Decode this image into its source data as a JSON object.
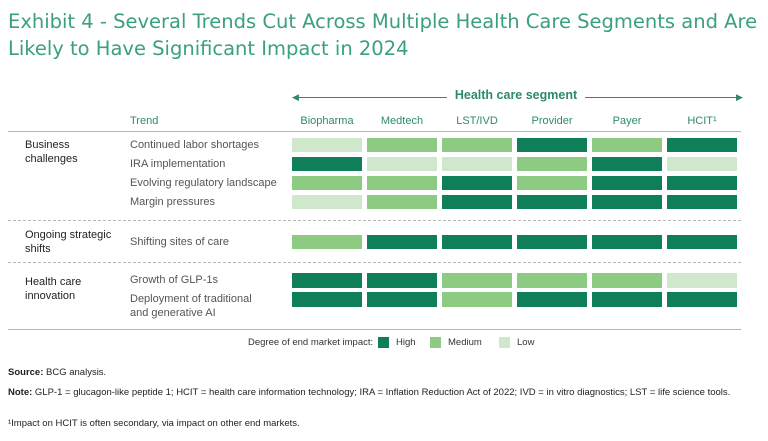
{
  "title": "Exhibit 4 - Several Trends Cut Across Multiple Health Care Segments and Are Likely to Have Significant Impact in 2024",
  "colors": {
    "high": "#0e7f58",
    "medium": "#8ccb81",
    "low": "#cfe8cc",
    "title": "#3aa07e",
    "accent": "#2e8b67"
  },
  "chart_data": {
    "type": "table",
    "title": "Exhibit 4 - Several Trends Cut Across Multiple Health Care Segments and Are Likely to Have Significant Impact in 2024",
    "column_group_label": "Health care segment",
    "trend_header": "Trend",
    "segments": [
      "Biopharma",
      "Medtech",
      "LST/IVD",
      "Provider",
      "Payer",
      "HCIT¹"
    ],
    "groups": [
      {
        "name": "Business challenges",
        "rows": [
          {
            "trend": "Continued labor shortages",
            "impact": [
              "low",
              "medium",
              "medium",
              "high",
              "medium",
              "high"
            ]
          },
          {
            "trend": "IRA implementation",
            "impact": [
              "high",
              "low",
              "low",
              "medium",
              "high",
              "low"
            ]
          },
          {
            "trend": "Evolving regulatory landscape",
            "impact": [
              "medium",
              "medium",
              "high",
              "medium",
              "high",
              "high"
            ]
          },
          {
            "trend": "Margin pressures",
            "impact": [
              "low",
              "medium",
              "high",
              "high",
              "high",
              "high"
            ]
          }
        ]
      },
      {
        "name": "Ongoing strategic shifts",
        "rows": [
          {
            "trend": "Shifting sites of care",
            "impact": [
              "medium",
              "high",
              "high",
              "high",
              "high",
              "high"
            ]
          }
        ]
      },
      {
        "name": "Health care innovation",
        "rows": [
          {
            "trend": "Growth of GLP-1s",
            "impact": [
              "high",
              "high",
              "medium",
              "medium",
              "medium",
              "low"
            ]
          },
          {
            "trend": "Deployment of traditional and generative AI",
            "impact": [
              "high",
              "high",
              "medium",
              "high",
              "high",
              "high"
            ]
          }
        ]
      }
    ],
    "legend": {
      "label": "Degree of end market impact:",
      "levels": [
        "High",
        "Medium",
        "Low"
      ]
    }
  },
  "footer": {
    "source_label": "Source:",
    "source_text": " BCG analysis.",
    "note_label": "Note:",
    "note_text": " GLP-1 = glucagon-like peptide 1; HCIT = health care information technology; IRA = Inflation Reduction Act of 2022; IVD = in vitro diagnostics; LST = life science tools.",
    "footnote": "¹Impact on HCIT is often secondary, via impact on other end markets."
  }
}
